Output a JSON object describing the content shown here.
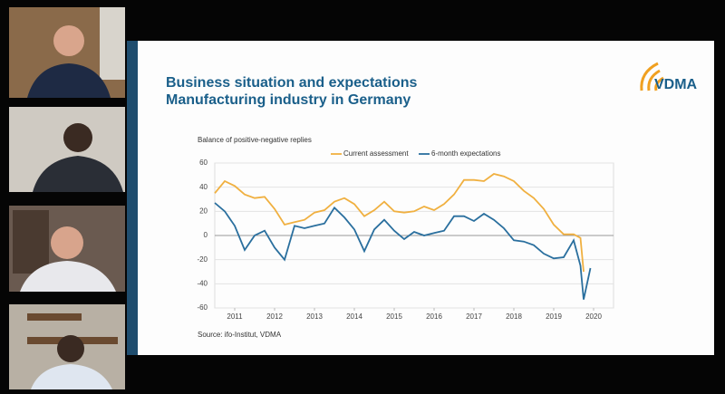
{
  "slide": {
    "title_lines": [
      "Business situation and expectations",
      "Manufacturing industry in Germany"
    ],
    "logo": "VDMA",
    "source": "Source: ifo-Institut, VDMA"
  },
  "chart_data": {
    "type": "line",
    "subtitle": "Balance of positive-negative replies",
    "x": [
      2011.0,
      2011.25,
      2011.5,
      2011.75,
      2012.0,
      2012.25,
      2012.5,
      2012.75,
      2013.0,
      2013.25,
      2013.5,
      2013.75,
      2014.0,
      2014.25,
      2014.5,
      2014.75,
      2015.0,
      2015.25,
      2015.5,
      2015.75,
      2016.0,
      2016.25,
      2016.5,
      2016.75,
      2017.0,
      2017.25,
      2017.5,
      2017.75,
      2018.0,
      2018.25,
      2018.5,
      2018.75,
      2019.0,
      2019.25,
      2019.5,
      2019.75,
      2020.0,
      2020.17,
      2020.25,
      2020.42
    ],
    "series": [
      {
        "name": "Current assessment",
        "color": "#f0b040",
        "values": [
          35,
          45,
          41,
          34,
          31,
          32,
          22,
          9,
          11,
          13,
          19,
          21,
          28,
          31,
          26,
          16,
          21,
          28,
          20,
          19,
          20,
          24,
          21,
          26,
          34,
          46,
          46,
          45,
          51,
          49,
          45,
          37,
          31,
          22,
          9,
          1,
          1,
          -2,
          -30,
          null
        ]
      },
      {
        "name": "6-month expectations",
        "color": "#2a6f9e",
        "values": [
          27,
          20,
          8,
          -12,
          0,
          4,
          -10,
          -20,
          8,
          6,
          8,
          10,
          23,
          15,
          5,
          -13,
          5,
          13,
          4,
          -3,
          3,
          0,
          2,
          4,
          16,
          16,
          12,
          18,
          13,
          6,
          -4,
          -5,
          -8,
          -15,
          -19,
          -18,
          -4,
          -25,
          -53,
          -27
        ]
      }
    ],
    "xlim": [
      2011,
      2021
    ],
    "xticks": [
      {
        "value": 2011.5,
        "label": "2011"
      },
      {
        "value": 2012.5,
        "label": "2012"
      },
      {
        "value": 2013.5,
        "label": "2013"
      },
      {
        "value": 2014.5,
        "label": "2014"
      },
      {
        "value": 2015.5,
        "label": "2015"
      },
      {
        "value": 2016.5,
        "label": "2016"
      },
      {
        "value": 2017.5,
        "label": "2017"
      },
      {
        "value": 2018.5,
        "label": "2018"
      },
      {
        "value": 2019.5,
        "label": "2019"
      },
      {
        "value": 2020.5,
        "label": "2020"
      }
    ],
    "ylim": [
      -60,
      60
    ],
    "yticks": [
      -60,
      -40,
      -20,
      0,
      20,
      40,
      60
    ],
    "grid": true
  }
}
